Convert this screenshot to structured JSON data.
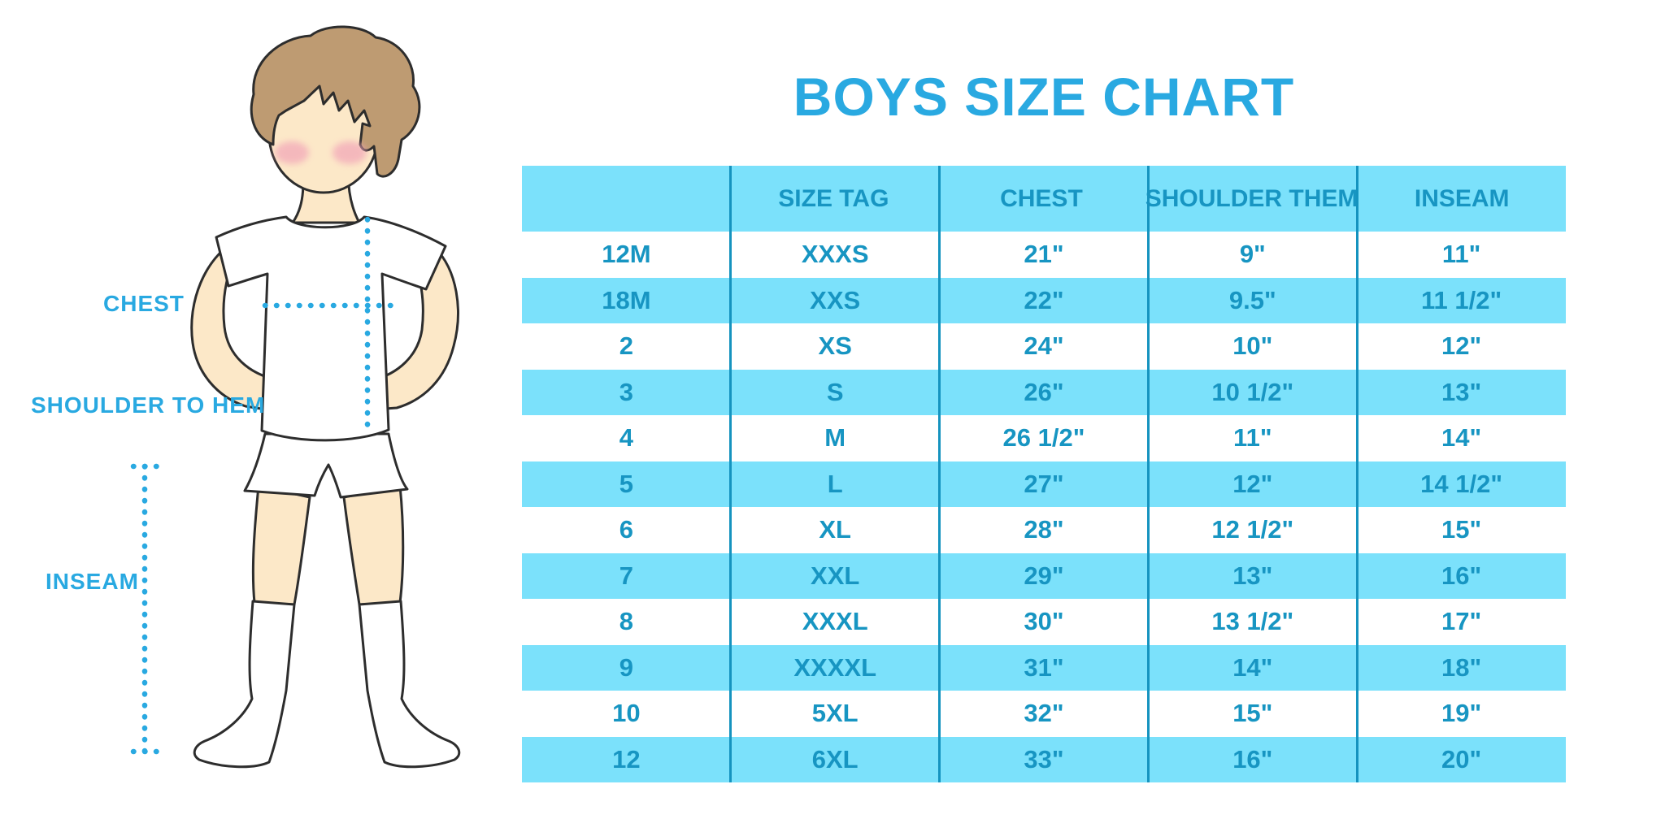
{
  "title": "BOYS SIZE CHART",
  "figure": {
    "description": "back view of a boy in white t-shirt, shorts and knee socks with dotted measurement guides",
    "labels": {
      "chest": "CHEST",
      "shoulder_to_hem": "SHOULDER TO HEM",
      "inseam": "INSEAM"
    }
  },
  "colors": {
    "title_blue": "#29A9E1",
    "stripe_blue": "#7BE1FB",
    "table_text": "#1795C2",
    "divider": "#1593BF",
    "dotted_line": "#29A9E1",
    "skin": "#FCE8C8",
    "hair": "#BE9B72",
    "blush": "#F2A4B8"
  },
  "chart_data": {
    "type": "table",
    "title": "BOYS SIZE CHART",
    "columns": [
      "",
      "SIZE TAG",
      "CHEST",
      "SHOULDER THEM",
      "INSEAM"
    ],
    "rows": [
      [
        "12M",
        "XXXS",
        "21\"",
        "9\"",
        "11\""
      ],
      [
        "18M",
        "XXS",
        "22\"",
        "9.5\"",
        "11 1/2\""
      ],
      [
        "2",
        "XS",
        "24\"",
        "10\"",
        "12\""
      ],
      [
        "3",
        "S",
        "26\"",
        "10 1/2\"",
        "13\""
      ],
      [
        "4",
        "M",
        "26 1/2\"",
        "11\"",
        "14\""
      ],
      [
        "5",
        "L",
        "27\"",
        "12\"",
        "14 1/2\""
      ],
      [
        "6",
        "XL",
        "28\"",
        "12 1/2\"",
        "15\""
      ],
      [
        "7",
        "XXL",
        "29\"",
        "13\"",
        "16\""
      ],
      [
        "8",
        "XXXL",
        "30\"",
        "13 1/2\"",
        "17\""
      ],
      [
        "9",
        "XXXXL",
        "31\"",
        "14\"",
        "18\""
      ],
      [
        "10",
        "5XL",
        "32\"",
        "15\"",
        "19\""
      ],
      [
        "12",
        "6XL",
        "33\"",
        "16\"",
        "20\""
      ]
    ],
    "layout": {
      "striped_rows": "even rows light blue, odd rows white, header light blue",
      "grid": "vertical column dividers only"
    }
  }
}
